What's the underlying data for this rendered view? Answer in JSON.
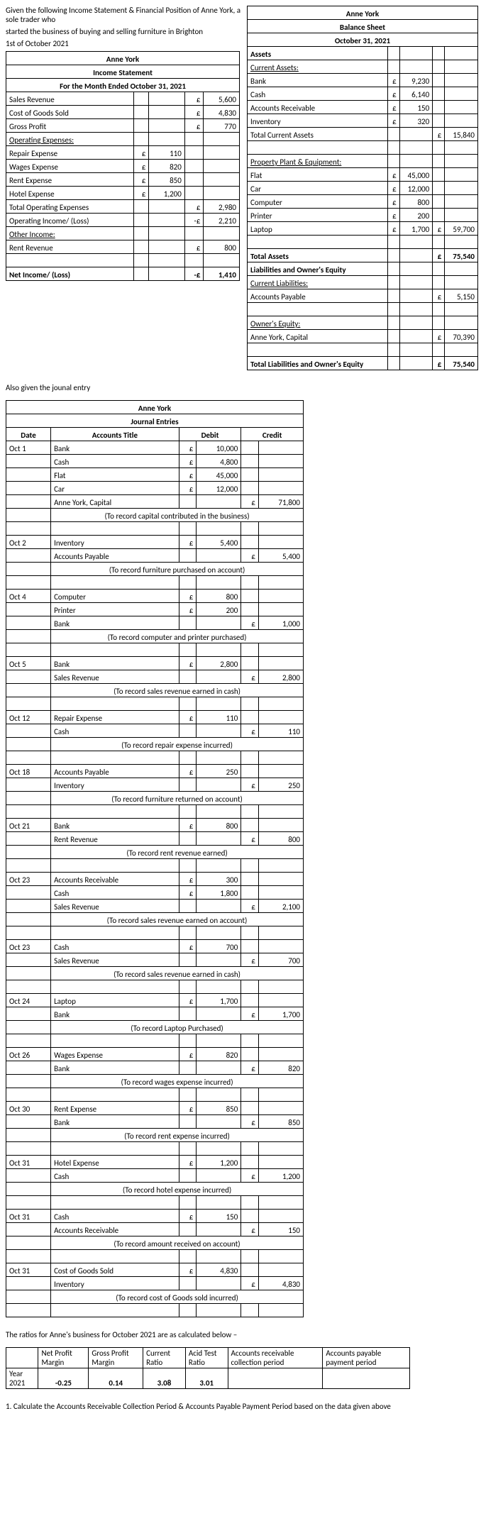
{
  "intro": {
    "line1": "Given the following Income Statement & Financial Position of Anne York, a sole trader who",
    "line2": "started the business of buying and selling furniture in Brighton",
    "line3": "1st of October 2021"
  },
  "income": {
    "company": "Anne York",
    "title": "Income Statement",
    "period": "For the Month Ended October 31, 2021",
    "rows": {
      "sales_revenue": {
        "label": "Sales Revenue",
        "c": "£",
        "v": "5,600"
      },
      "cogs": {
        "label": "Cost of Goods Sold",
        "c": "£",
        "v": "4,830"
      },
      "gross_profit": {
        "label": "Gross Profit",
        "c": "£",
        "v": "770"
      },
      "op_exp_head": {
        "label": "Operating Expenses:"
      },
      "repair": {
        "label": "Repair Expense",
        "c": "£",
        "v": "110"
      },
      "wages": {
        "label": "Wages Expense",
        "c": "£",
        "v": "820"
      },
      "rent": {
        "label": "Rent Expense",
        "c": "£",
        "v": "850"
      },
      "hotel": {
        "label": "Hotel Expense",
        "c": "£",
        "v": "1,200"
      },
      "total_op": {
        "label": "Total Operating Expenses",
        "c": "£",
        "v": "2,980"
      },
      "op_income": {
        "label": "Operating Income/ (Loss)",
        "c": "-£",
        "v": "2,210"
      },
      "other_head": {
        "label": "Other Income:"
      },
      "rent_rev": {
        "label": "Rent Revenue",
        "c": "£",
        "v": "800"
      },
      "net": {
        "label": "Net Income/ (Loss)",
        "c": "-£",
        "v": "1,410"
      }
    }
  },
  "balance": {
    "company": "Anne York",
    "title": "Balance Sheet",
    "date": "October 31, 2021",
    "assets_head": "Assets",
    "ca_head": "Current Assets:",
    "bank": {
      "label": "Bank",
      "c": "£",
      "v": "9,230"
    },
    "cash": {
      "label": "Cash",
      "c": "£",
      "v": "6,140"
    },
    "ar": {
      "label": "Accounts Receivable",
      "c": "£",
      "v": "150"
    },
    "inv": {
      "label": "Inventory",
      "c": "£",
      "v": "320"
    },
    "tca": {
      "label": "Total Current Assets",
      "c": "£",
      "v": "15,840"
    },
    "ppe_head": "Property Plant & Equipment:",
    "flat": {
      "label": "Flat",
      "c": "£",
      "v": "45,000"
    },
    "car": {
      "label": "Car",
      "c": "£",
      "v": "12,000"
    },
    "computer": {
      "label": "Computer",
      "c": "£",
      "v": "800"
    },
    "printer": {
      "label": "Printer",
      "c": "£",
      "v": "200"
    },
    "laptop": {
      "label": "Laptop",
      "c": "£",
      "v": "1,700",
      "tc": "£",
      "tv": "59,700"
    },
    "total_assets": {
      "label": "Total Assets",
      "c": "£",
      "v": "75,540"
    },
    "liab_head": "Liabilities and Owner's Equity",
    "cl_head": "Current Liabilities:",
    "ap": {
      "label": "Accounts Payable",
      "c": "£",
      "v": "5,150"
    },
    "oe_head": "Owner's Equity:",
    "capital": {
      "label": "Anne York, Capital",
      "c": "£",
      "v": "70,390"
    },
    "total_le": {
      "label": "Total Liabilities and Owner's Equity",
      "c": "£",
      "v": "75,540"
    }
  },
  "journal_intro": "Also given the jounal entry",
  "journal": {
    "company": "Anne York",
    "title": "Journal Entries",
    "cols": {
      "date": "Date",
      "account": "Accounts Title",
      "debit": "Debit",
      "credit": "Credit"
    },
    "entries": [
      {
        "date": "Oct 1",
        "lines": [
          {
            "a": "Bank",
            "dc": "£",
            "dv": "10,000"
          },
          {
            "a": "Cash",
            "dc": "£",
            "dv": "4,800"
          },
          {
            "a": "Flat",
            "dc": "£",
            "dv": "45,000"
          },
          {
            "a": "Car",
            "dc": "£",
            "dv": "12,000"
          },
          {
            "a": "Anne York, Capital",
            "cc": "£",
            "cv": "71,800"
          }
        ],
        "note": "(To record capital contributed in the business)"
      },
      {
        "date": "Oct 2",
        "lines": [
          {
            "a": "Inventory",
            "dc": "£",
            "dv": "5,400"
          },
          {
            "a": "Accounts Payable",
            "cc": "£",
            "cv": "5,400"
          }
        ],
        "note": "(To record furniture purchased on account)"
      },
      {
        "date": "Oct 4",
        "lines": [
          {
            "a": "Computer",
            "dc": "£",
            "dv": "800"
          },
          {
            "a": "Printer",
            "dc": "£",
            "dv": "200"
          },
          {
            "a": "Bank",
            "cc": "£",
            "cv": "1,000"
          }
        ],
        "note": "(To record computer and printer purchased)"
      },
      {
        "date": "Oct 5",
        "lines": [
          {
            "a": "Bank",
            "dc": "£",
            "dv": "2,800"
          },
          {
            "a": "Sales Revenue",
            "cc": "£",
            "cv": "2,800"
          }
        ],
        "note": "(To record sales revenue earned in cash)"
      },
      {
        "date": "Oct 12",
        "lines": [
          {
            "a": "Repair Expense",
            "dc": "£",
            "dv": "110"
          },
          {
            "a": "Cash",
            "cc": "£",
            "cv": "110"
          }
        ],
        "note": "(To record repair expense incurred)"
      },
      {
        "date": "Oct 18",
        "lines": [
          {
            "a": "Accounts Payable",
            "dc": "£",
            "dv": "250"
          },
          {
            "a": "Inventory",
            "cc": "£",
            "cv": "250"
          }
        ],
        "note": "(To record furniture returned on account)"
      },
      {
        "date": "Oct 21",
        "lines": [
          {
            "a": "Bank",
            "dc": "£",
            "dv": "800"
          },
          {
            "a": "Rent Revenue",
            "cc": "£",
            "cv": "800"
          }
        ],
        "note": "(To record rent revenue earned)"
      },
      {
        "date": "Oct 23",
        "lines": [
          {
            "a": "Accounts Receivable",
            "dc": "£",
            "dv": "300"
          },
          {
            "a": "Cash",
            "dc": "£",
            "dv": "1,800"
          },
          {
            "a": "Sales Revenue",
            "cc": "£",
            "cv": "2,100"
          }
        ],
        "note": "(To record sales revenue earned on account)"
      },
      {
        "date": "Oct 23",
        "lines": [
          {
            "a": "Cash",
            "dc": "£",
            "dv": "700"
          },
          {
            "a": "Sales Revenue",
            "cc": "£",
            "cv": "700"
          }
        ],
        "note": "(To record sales revenue earned in cash)"
      },
      {
        "date": "Oct 24",
        "lines": [
          {
            "a": "Laptop",
            "dc": "£",
            "dv": "1,700"
          },
          {
            "a": "Bank",
            "cc": "£",
            "cv": "1,700"
          }
        ],
        "note": "(To record Laptop Purchased)"
      },
      {
        "date": "Oct 26",
        "lines": [
          {
            "a": "Wages Expense",
            "dc": "£",
            "dv": "820"
          },
          {
            "a": "Bank",
            "cc": "£",
            "cv": "820"
          }
        ],
        "note": "(To record wages expense incurred)"
      },
      {
        "date": "Oct 30",
        "lines": [
          {
            "a": "Rent Expense",
            "dc": "£",
            "dv": "850"
          },
          {
            "a": "Bank",
            "cc": "£",
            "cv": "850"
          }
        ],
        "note": "(To record rent expense incurred)"
      },
      {
        "date": "Oct 31",
        "lines": [
          {
            "a": "Hotel Expense",
            "dc": "£",
            "dv": "1,200"
          },
          {
            "a": "Cash",
            "cc": "£",
            "cv": "1,200"
          }
        ],
        "note": "(To record hotel expense incurred)"
      },
      {
        "date": "Oct 31",
        "lines": [
          {
            "a": "Cash",
            "dc": "£",
            "dv": "150"
          },
          {
            "a": "Accounts Receivable",
            "cc": "£",
            "cv": "150"
          }
        ],
        "note": "(To record amount received on account)"
      },
      {
        "date": "Oct 31",
        "lines": [
          {
            "a": "Cost of Goods Sold",
            "dc": "£",
            "dv": "4,830"
          },
          {
            "a": "Inventory",
            "cc": "£",
            "cv": "4,830"
          }
        ],
        "note": "(To record cost of Goods sold incurred)"
      }
    ]
  },
  "ratios_intro": "The ratios for Anne's business for October 2021 are as calculated below –",
  "ratios": {
    "headers": [
      "",
      "Net Profit Margin",
      "Gross Profit Margin",
      "Current Ratio",
      "Acid Test Ratio",
      "Accounts receivable collection period",
      "Accounts payable payment period"
    ],
    "row_label": "Year 2021",
    "values": [
      "-0.25",
      "0.14",
      "3.08",
      "3.01",
      "",
      ""
    ]
  },
  "question": "1. Calculate the Accounts Receivable Collection Period & Accounts Payable Payment Period based on the data given above"
}
